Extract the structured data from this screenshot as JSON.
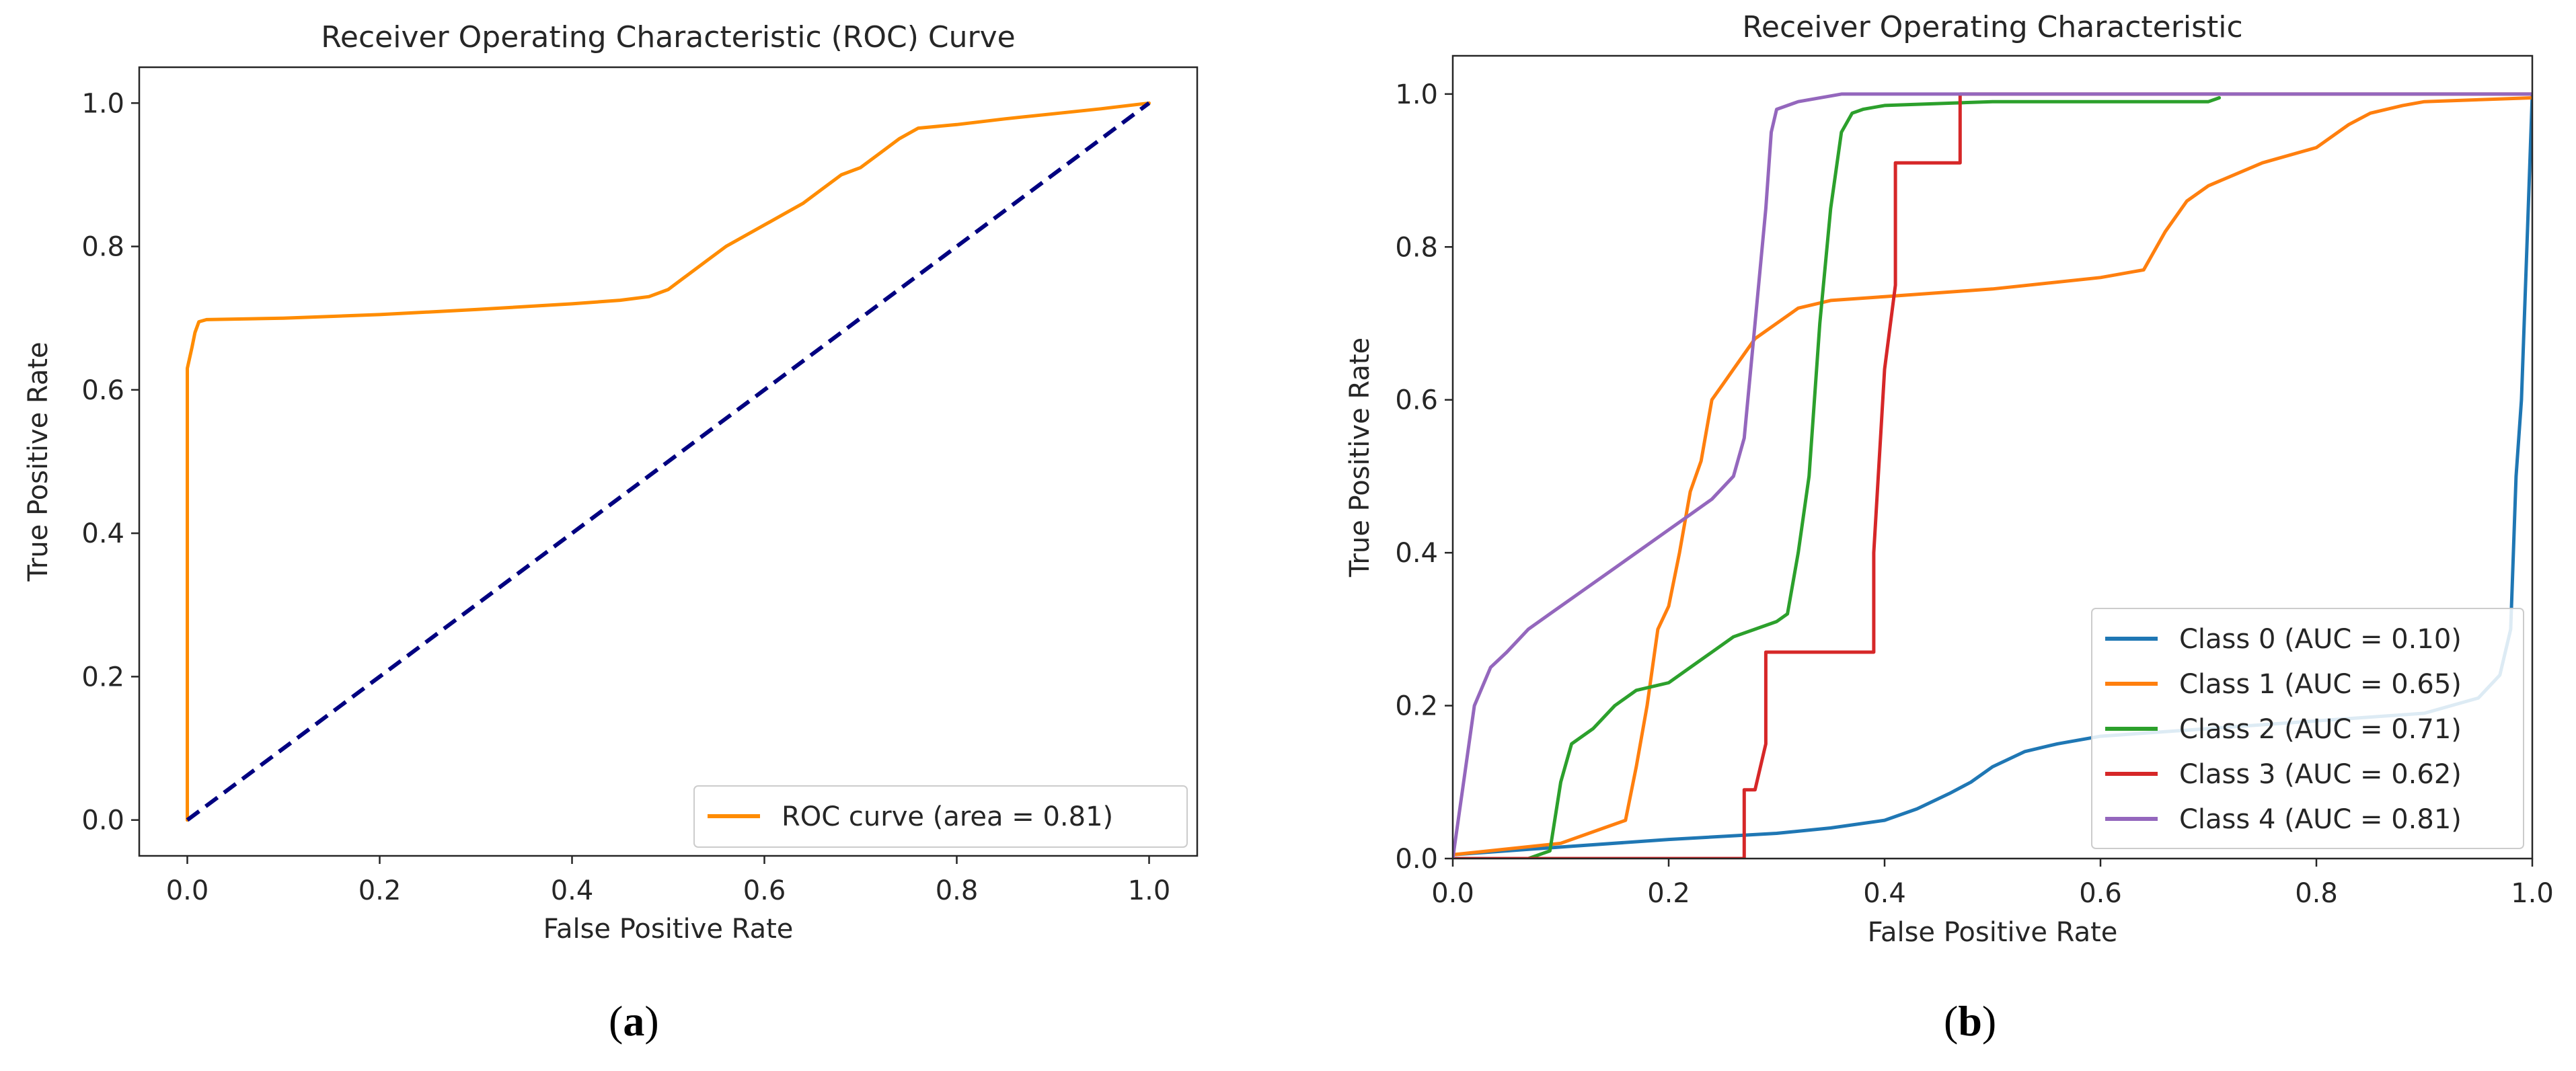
{
  "chart_data": [
    {
      "type": "line",
      "title": "Receiver Operating Characteristic (ROC) Curve",
      "xlabel": "False Positive Rate",
      "ylabel": "True Positive Rate",
      "xlim": [
        -0.05,
        1.05
      ],
      "ylim": [
        -0.05,
        1.05
      ],
      "xticks": [
        0.0,
        0.2,
        0.4,
        0.6,
        0.8,
        1.0
      ],
      "yticks": [
        0.0,
        0.2,
        0.4,
        0.6,
        0.8,
        1.0
      ],
      "tick_format": 1,
      "legend_position": "lower-right",
      "grid": false,
      "caption_letter": "a",
      "series": [
        {
          "name": "ROC curve (area = 0.81)",
          "color": "#ff8c00",
          "style": "solid",
          "x": [
            0.0,
            0.0,
            0.005,
            0.008,
            0.012,
            0.02,
            0.1,
            0.2,
            0.3,
            0.4,
            0.45,
            0.48,
            0.5,
            0.52,
            0.54,
            0.56,
            0.58,
            0.6,
            0.62,
            0.64,
            0.66,
            0.68,
            0.7,
            0.72,
            0.74,
            0.76,
            0.8,
            0.85,
            0.9,
            0.95,
            1.0
          ],
          "y": [
            0.0,
            0.63,
            0.66,
            0.68,
            0.695,
            0.698,
            0.7,
            0.705,
            0.712,
            0.72,
            0.725,
            0.73,
            0.74,
            0.76,
            0.78,
            0.8,
            0.815,
            0.83,
            0.845,
            0.86,
            0.88,
            0.9,
            0.91,
            0.93,
            0.95,
            0.965,
            0.97,
            0.978,
            0.985,
            0.992,
            1.0
          ]
        },
        {
          "name": "",
          "color": "#000080",
          "style": "dashed",
          "x": [
            0.0,
            1.0
          ],
          "y": [
            0.0,
            1.0
          ]
        }
      ]
    },
    {
      "type": "line",
      "title": "Receiver Operating Characteristic",
      "xlabel": "False Positive Rate",
      "ylabel": "True Positive Rate",
      "xlim": [
        0.0,
        1.0
      ],
      "ylim": [
        0.0,
        1.05
      ],
      "xticks": [
        0.0,
        0.2,
        0.4,
        0.6,
        0.8,
        1.0
      ],
      "yticks": [
        0.0,
        0.2,
        0.4,
        0.6,
        0.8,
        1.0
      ],
      "tick_format": 1,
      "legend_position": "lower-right",
      "grid": false,
      "caption_letter": "b",
      "series": [
        {
          "name": "Class 0 (AUC = 0.10)",
          "color": "#1f77b4",
          "style": "solid",
          "x": [
            0.0,
            0.1,
            0.2,
            0.3,
            0.35,
            0.4,
            0.43,
            0.46,
            0.48,
            0.5,
            0.53,
            0.56,
            0.6,
            0.7,
            0.8,
            0.9,
            0.95,
            0.97,
            0.98,
            0.985,
            0.99,
            0.995,
            1.0
          ],
          "y": [
            0.005,
            0.015,
            0.025,
            0.033,
            0.04,
            0.05,
            0.065,
            0.085,
            0.1,
            0.12,
            0.14,
            0.15,
            0.16,
            0.17,
            0.18,
            0.19,
            0.21,
            0.24,
            0.3,
            0.5,
            0.6,
            0.8,
            1.0
          ]
        },
        {
          "name": "Class 1 (AUC = 0.65)",
          "color": "#ff7f0e",
          "style": "solid",
          "x": [
            0.0,
            0.1,
            0.14,
            0.16,
            0.17,
            0.18,
            0.19,
            0.2,
            0.21,
            0.22,
            0.23,
            0.24,
            0.25,
            0.26,
            0.27,
            0.28,
            0.3,
            0.32,
            0.35,
            0.4,
            0.5,
            0.6,
            0.64,
            0.66,
            0.68,
            0.7,
            0.75,
            0.8,
            0.83,
            0.85,
            0.88,
            0.9,
            1.0
          ],
          "y": [
            0.005,
            0.02,
            0.04,
            0.05,
            0.12,
            0.2,
            0.3,
            0.33,
            0.4,
            0.48,
            0.52,
            0.6,
            0.62,
            0.64,
            0.66,
            0.68,
            0.7,
            0.72,
            0.73,
            0.735,
            0.745,
            0.76,
            0.77,
            0.82,
            0.86,
            0.88,
            0.91,
            0.93,
            0.96,
            0.975,
            0.985,
            0.99,
            0.995
          ]
        },
        {
          "name": "Class 2 (AUC = 0.71)",
          "color": "#2ca02c",
          "style": "solid",
          "x": [
            0.07,
            0.09,
            0.1,
            0.11,
            0.13,
            0.15,
            0.17,
            0.2,
            0.22,
            0.24,
            0.26,
            0.28,
            0.3,
            0.31,
            0.32,
            0.33,
            0.34,
            0.35,
            0.36,
            0.37,
            0.38,
            0.4,
            0.5,
            0.7,
            0.71
          ],
          "y": [
            0.0,
            0.01,
            0.1,
            0.15,
            0.17,
            0.2,
            0.22,
            0.23,
            0.25,
            0.27,
            0.29,
            0.3,
            0.31,
            0.32,
            0.4,
            0.5,
            0.7,
            0.85,
            0.95,
            0.975,
            0.98,
            0.985,
            0.99,
            0.99,
            0.995
          ]
        },
        {
          "name": "Class 3 (AUC = 0.62)",
          "color": "#d62728",
          "style": "solid",
          "x": [
            0.0,
            0.27,
            0.27,
            0.28,
            0.29,
            0.29,
            0.39,
            0.39,
            0.4,
            0.41,
            0.41,
            0.47,
            0.47,
            1.0
          ],
          "y": [
            0.0,
            0.0,
            0.09,
            0.09,
            0.15,
            0.27,
            0.27,
            0.4,
            0.64,
            0.75,
            0.91,
            0.91,
            1.0,
            1.0
          ]
        },
        {
          "name": "Class 4 (AUC = 0.81)",
          "color": "#9467bd",
          "style": "solid",
          "x": [
            0.0,
            0.01,
            0.02,
            0.035,
            0.05,
            0.07,
            0.09,
            0.1,
            0.12,
            0.15,
            0.18,
            0.2,
            0.22,
            0.24,
            0.26,
            0.27,
            0.28,
            0.29,
            0.295,
            0.3,
            0.32,
            0.36,
            0.4,
            0.5,
            1.0
          ],
          "y": [
            0.0,
            0.1,
            0.2,
            0.25,
            0.27,
            0.3,
            0.32,
            0.33,
            0.35,
            0.38,
            0.41,
            0.43,
            0.45,
            0.47,
            0.5,
            0.55,
            0.7,
            0.85,
            0.95,
            0.98,
            0.99,
            1.0,
            1.0,
            1.0,
            1.0
          ]
        }
      ]
    }
  ]
}
